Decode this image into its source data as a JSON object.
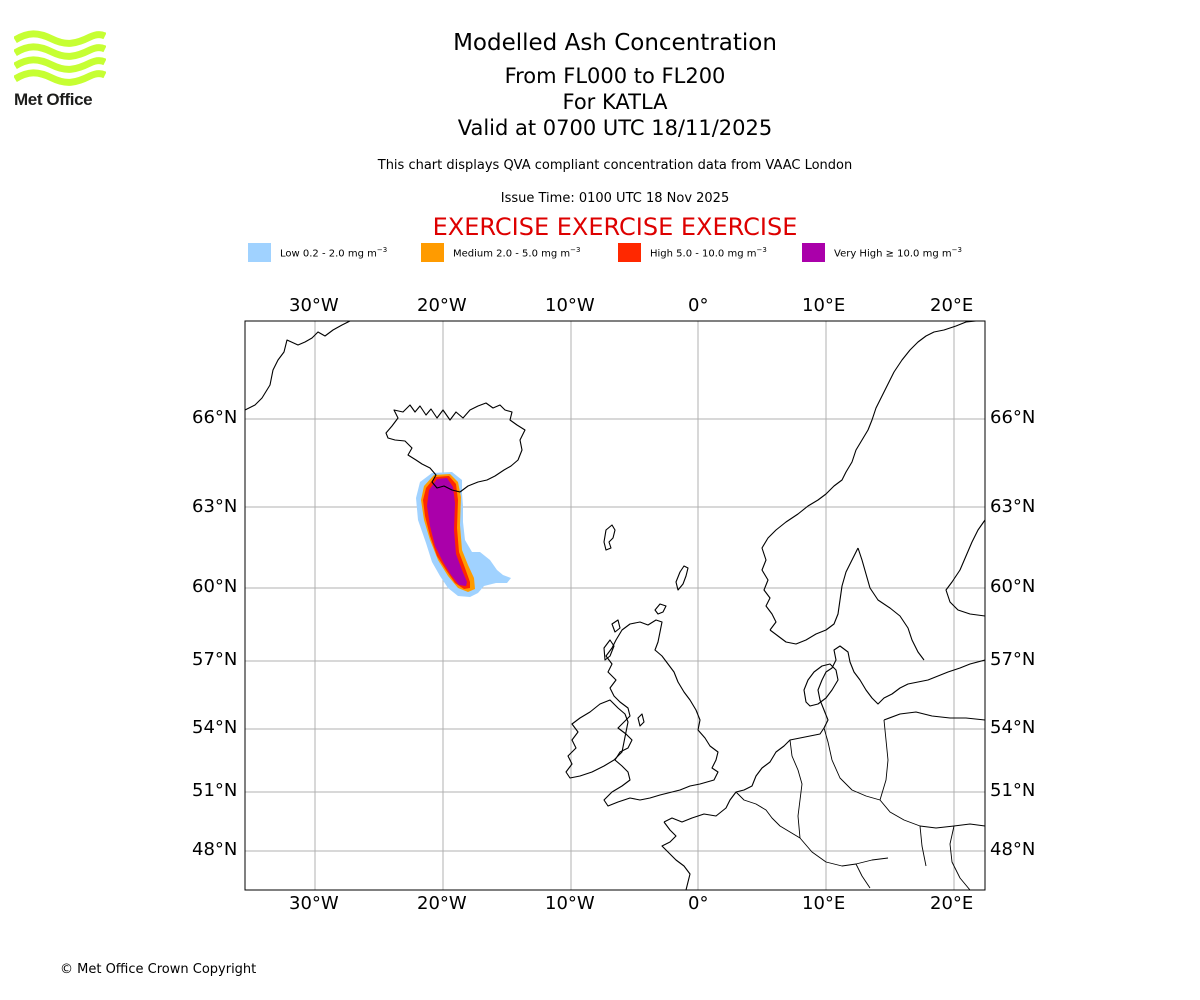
{
  "logo": {
    "text": "Met Office",
    "icon": "met-office-waves-icon",
    "color": "#c6ff33"
  },
  "titles": {
    "main": "Modelled Ash Concentration",
    "levels": "From FL000 to FL200",
    "volcano": "For KATLA",
    "valid": "Valid at 0700 UTC 18/11/2025",
    "description": "This chart displays QVA compliant concentration data from VAAC London",
    "issue_time": "Issue Time: 0100 UTC 18 Nov 2025",
    "exercise": "EXERCISE EXERCISE EXERCISE",
    "exercise_color": "#dd0000"
  },
  "legend": [
    {
      "label": "Low 0.2 - 2.0 mg m",
      "exp": "−3",
      "color": "#a0d2ff"
    },
    {
      "label": "Medium 2.0 - 5.0 mg m",
      "exp": "−3",
      "color": "#ff9b00"
    },
    {
      "label": "High 5.0 - 10.0 mg m",
      "exp": "−3",
      "color": "#ff2800"
    },
    {
      "label": "Very High ≥ 10.0 mg m",
      "exp": "−3",
      "color": "#aa00aa"
    }
  ],
  "axes": {
    "longitude_labels": [
      "30°W",
      "20°W",
      "10°W",
      "0°",
      "10°E",
      "20°E"
    ],
    "latitude_labels": [
      "66°N",
      "63°N",
      "60°N",
      "57°N",
      "54°N",
      "51°N",
      "48°N"
    ]
  },
  "copyright": "© Met Office Crown Copyright"
}
